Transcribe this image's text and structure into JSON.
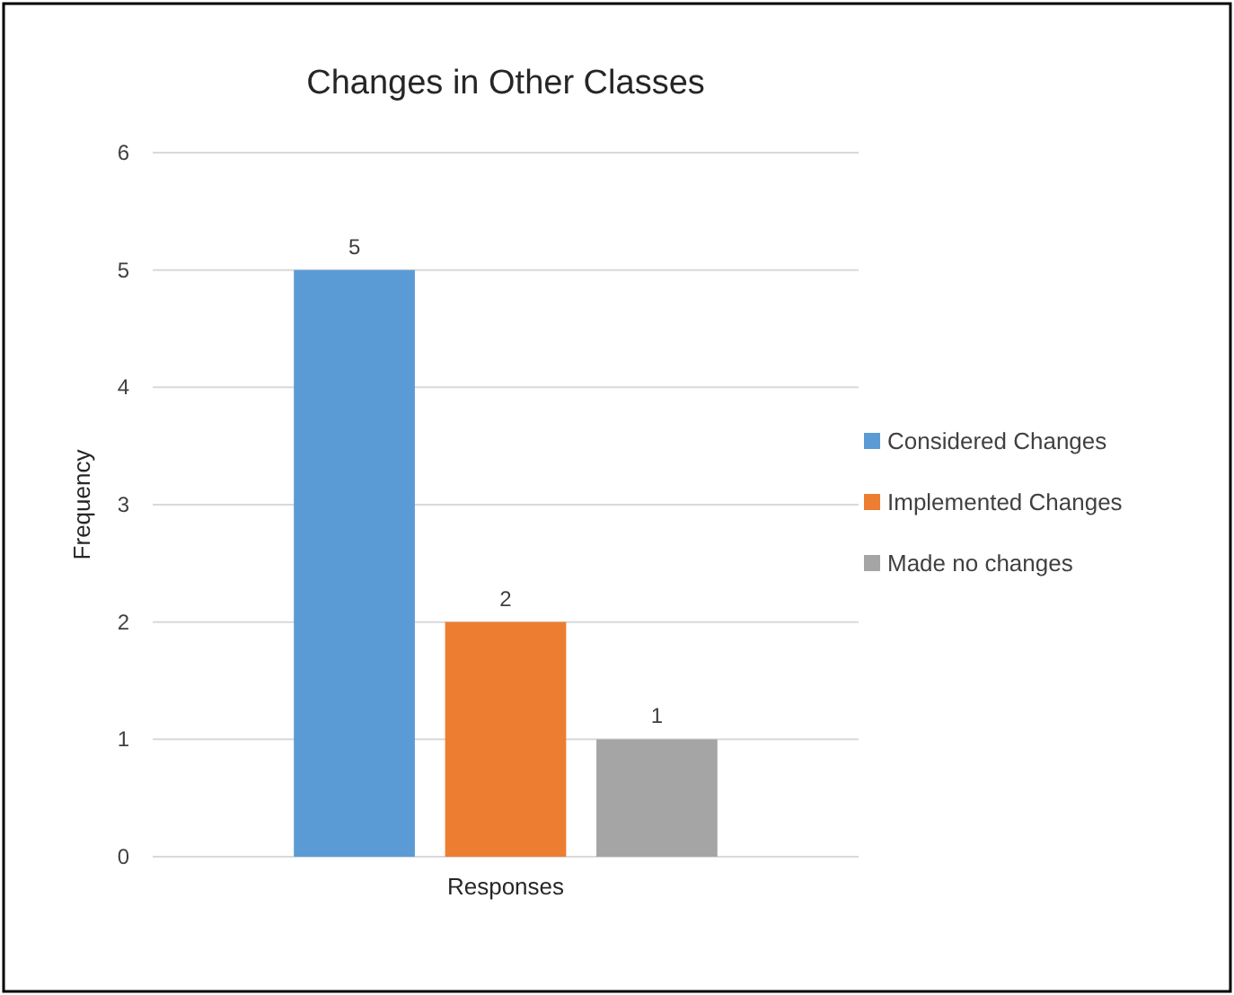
{
  "chart_data": {
    "type": "bar",
    "title": "Changes in Other Classes",
    "ylabel": "Frequency",
    "categories": [
      "Responses"
    ],
    "series": [
      {
        "name": "Considered Changes",
        "color": "#5b9bd5",
        "values": [
          5
        ]
      },
      {
        "name": "Implemented Changes",
        "color": "#ed7d31",
        "values": [
          2
        ]
      },
      {
        "name": "Made no changes",
        "color": "#a5a5a5",
        "values": [
          1
        ]
      }
    ],
    "ylim": [
      0,
      6
    ],
    "yticks": [
      0,
      1,
      2,
      3,
      4,
      5,
      6
    ],
    "grid": "y",
    "legend": "right",
    "data_labels": true
  }
}
